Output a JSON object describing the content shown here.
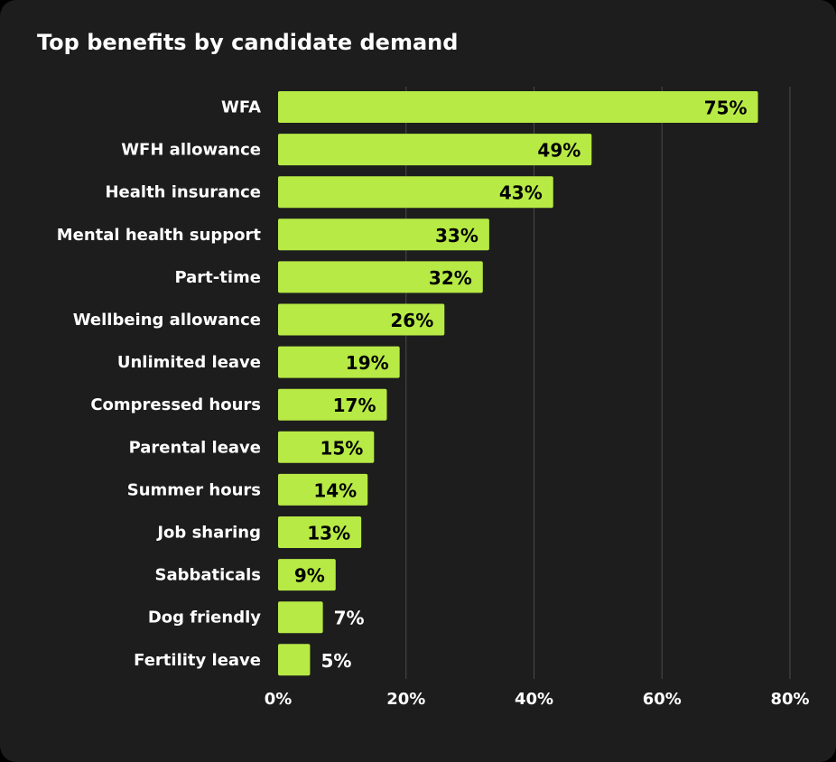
{
  "chart_data": {
    "type": "bar",
    "orientation": "horizontal",
    "title": "Top benefits by candidate demand",
    "categories": [
      "WFA",
      "WFH allowance",
      "Health insurance",
      "Mental health support",
      "Part-time",
      "Wellbeing allowance",
      "Unlimited leave",
      "Compressed hours",
      "Parental leave",
      "Summer hours",
      "Job sharing",
      "Sabbaticals",
      "Dog friendly",
      "Fertility leave"
    ],
    "values": [
      75,
      49,
      43,
      33,
      32,
      26,
      19,
      17,
      15,
      14,
      13,
      9,
      7,
      5
    ],
    "value_labels": [
      "75%",
      "49%",
      "43%",
      "33%",
      "32%",
      "26%",
      "19%",
      "17%",
      "15%",
      "14%",
      "13%",
      "9%",
      "7%",
      "5%"
    ],
    "xlim": [
      0,
      80
    ],
    "xticks": [
      0,
      20,
      40,
      60,
      80
    ],
    "xtick_labels": [
      "0%",
      "20%",
      "40%",
      "60%",
      "80%"
    ],
    "grid": "vertical",
    "legend": "none",
    "colors": {
      "background": "#1d1d1d",
      "bar": "#b7ea45",
      "grid": "#4a4a4a",
      "text": "#ffffff",
      "label_on_bar": "#000000"
    }
  }
}
